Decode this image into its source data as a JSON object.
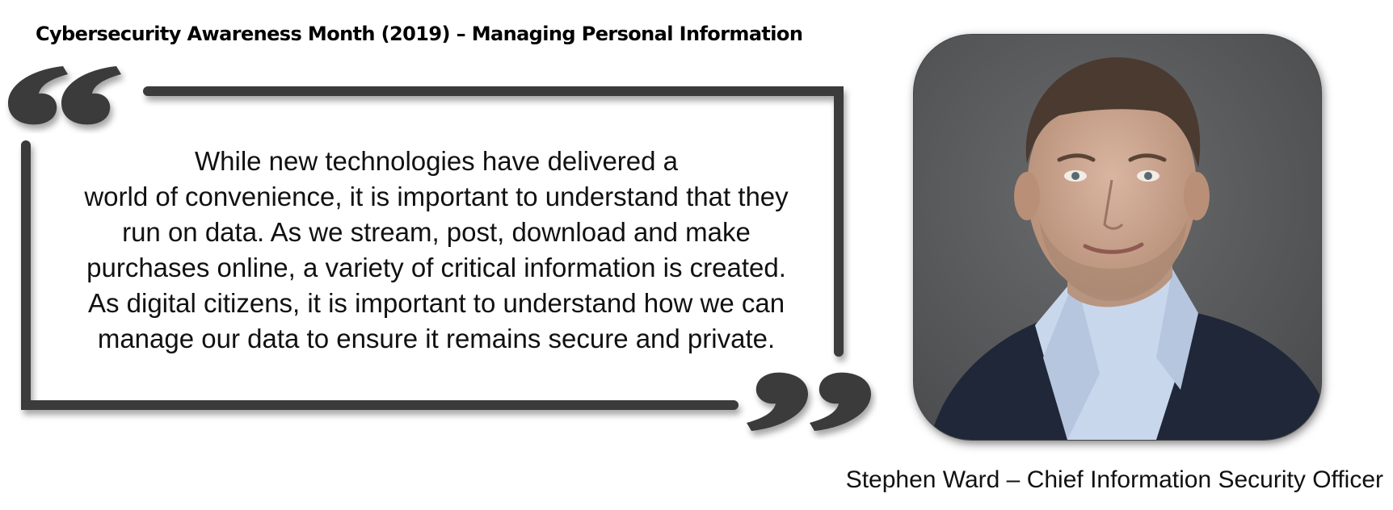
{
  "title": "Cybersecurity Awareness Month (2019) – Managing Personal Information",
  "quote": {
    "lines": [
      "While new technologies have delivered a",
      "world of convenience, it is important to understand that they",
      "run on data. As we stream, post, download and make",
      "purchases online, a variety of critical information is created.",
      "As digital citizens, it is important to understand how we can",
      "manage our data to ensure it remains secure and private."
    ]
  },
  "caption": "Stephen Ward – Chief Information Security Officer",
  "colors": {
    "frame": "#3b3b3b",
    "photo_background": "#58595b",
    "jacket": "#1f2738",
    "shirt": "#c9d7ec",
    "skin": "#c9a58f"
  },
  "icons": {
    "open_quote": "open-quote-icon",
    "close_quote": "close-quote-icon"
  }
}
